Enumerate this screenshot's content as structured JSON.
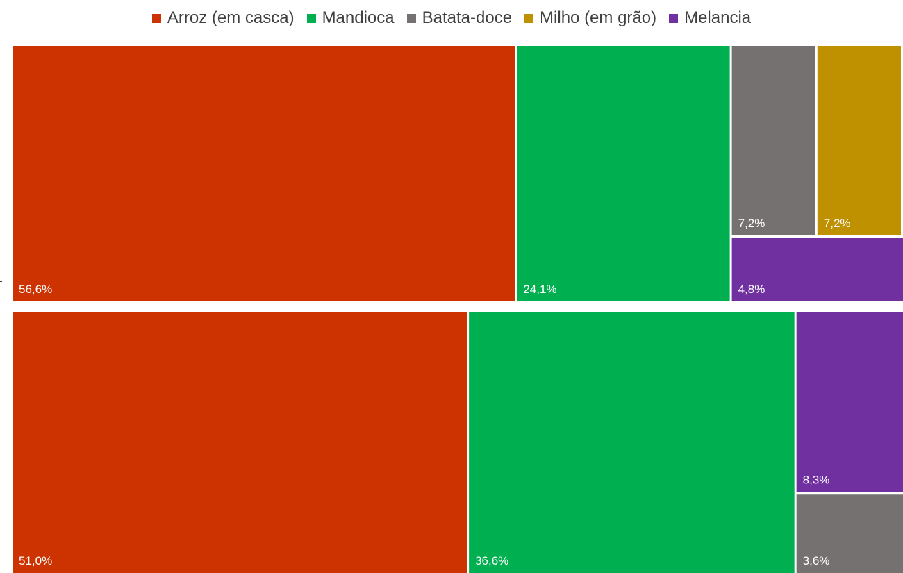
{
  "chart_data": {
    "type": "treemap",
    "categories": [
      "Arroz (em casca)",
      "Mandioca",
      "Batata-doce",
      "Milho (em grão)",
      "Melancia"
    ],
    "colors": {
      "Arroz (em casca)": "#cc3300",
      "Mandioca": "#00b050",
      "Batata-doce": "#767171",
      "Milho (em grão)": "#bf9000",
      "Melancia": "#7030a0"
    },
    "legend_position": "top",
    "groups": [
      {
        "label": "",
        "values": [
          {
            "category": "Arroz (em casca)",
            "value": 56.6,
            "label": "56,6%"
          },
          {
            "category": "Mandioca",
            "value": 24.1,
            "label": "24,1%"
          },
          {
            "category": "Batata-doce",
            "value": 7.2,
            "label": "7,2%"
          },
          {
            "category": "Milho (em grão)",
            "value": 7.2,
            "label": "7,2%"
          },
          {
            "category": "Melancia",
            "value": 4.8,
            "label": "4,8%"
          }
        ]
      },
      {
        "label": "",
        "values": [
          {
            "category": "Arroz (em casca)",
            "value": 51.0,
            "label": "51,0%"
          },
          {
            "category": "Mandioca",
            "value": 36.6,
            "label": "36,6%"
          },
          {
            "category": "Melancia",
            "value": 8.3,
            "label": "8,3%"
          },
          {
            "category": "Batata-doce",
            "value": 3.6,
            "label": "3,6%"
          }
        ]
      }
    ]
  }
}
